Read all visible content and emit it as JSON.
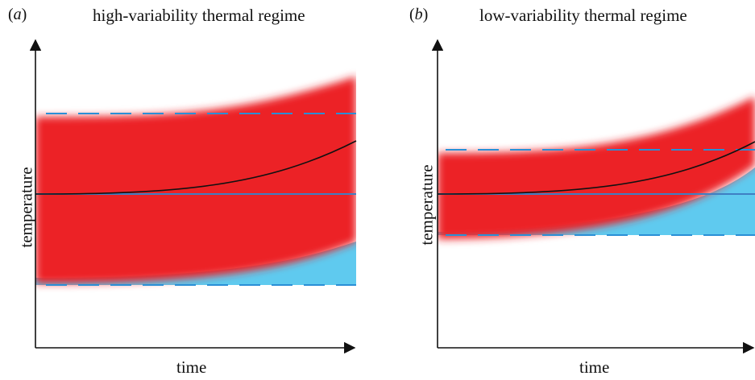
{
  "panels": [
    {
      "letter": "a",
      "title": "high-variability thermal regime",
      "ylabel": "temperature",
      "xlabel": "time",
      "envelope_color": "#ec2027",
      "loss_color": "#5fcaef",
      "limit_line_color": "#2a8fd6",
      "mean_line_color": "#3f7fc3",
      "trend_line_color": "#111111"
    },
    {
      "letter": "b",
      "title": "low-variability thermal regime",
      "ylabel": "temperature",
      "xlabel": "time",
      "envelope_color": "#ec2027",
      "loss_color": "#5fcaef",
      "limit_line_color": "#2a8fd6",
      "mean_line_color": "#3f7fc3",
      "trend_line_color": "#111111"
    }
  ]
}
